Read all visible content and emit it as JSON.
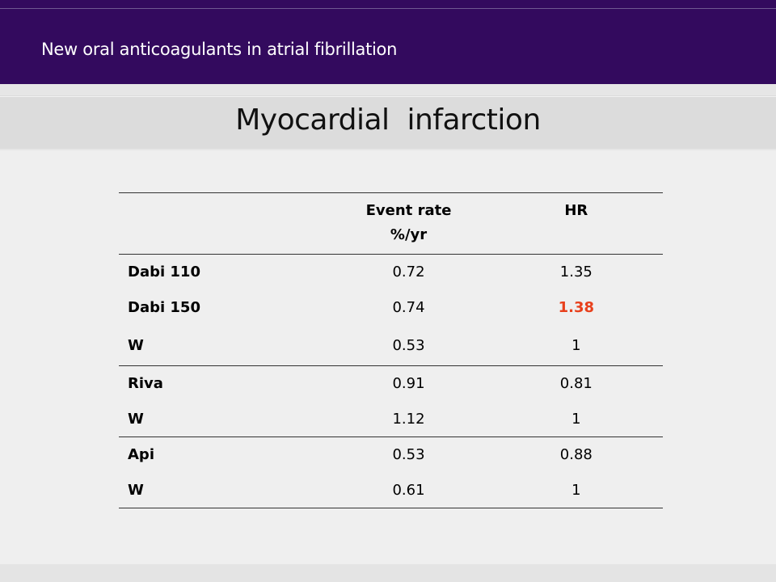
{
  "header": {
    "text": "New oral anticoagulants in atrial fibrillation"
  },
  "title": "Myocardial  infarction",
  "table": {
    "columns": [
      {
        "label": "",
        "line1": "",
        "line2": ""
      },
      {
        "label": "Event rate %/yr",
        "line1": "Event rate",
        "line2": "%/yr"
      },
      {
        "label": "HR",
        "line1": "HR",
        "line2": ""
      }
    ],
    "groups": [
      {
        "rows": [
          {
            "drug": "Dabi 110",
            "event_rate": "0.72",
            "hr": "1.35"
          },
          {
            "drug": "Dabi 150",
            "event_rate": "0.74",
            "hr": "1.38",
            "hr_highlight": true
          },
          {
            "drug": "W",
            "event_rate": "0.53",
            "hr": "1"
          }
        ]
      },
      {
        "rows": [
          {
            "drug": "Riva",
            "event_rate": "0.91",
            "hr": "0.81"
          },
          {
            "drug": "W",
            "event_rate": "1.12",
            "hr": "1"
          }
        ]
      },
      {
        "rows": [
          {
            "drug": "Api",
            "event_rate": "0.53",
            "hr": "0.88"
          },
          {
            "drug": "W",
            "event_rate": "0.61",
            "hr": "1"
          }
        ]
      }
    ]
  },
  "colors": {
    "header_band": "#330a5e",
    "highlight": "#e8401c"
  }
}
